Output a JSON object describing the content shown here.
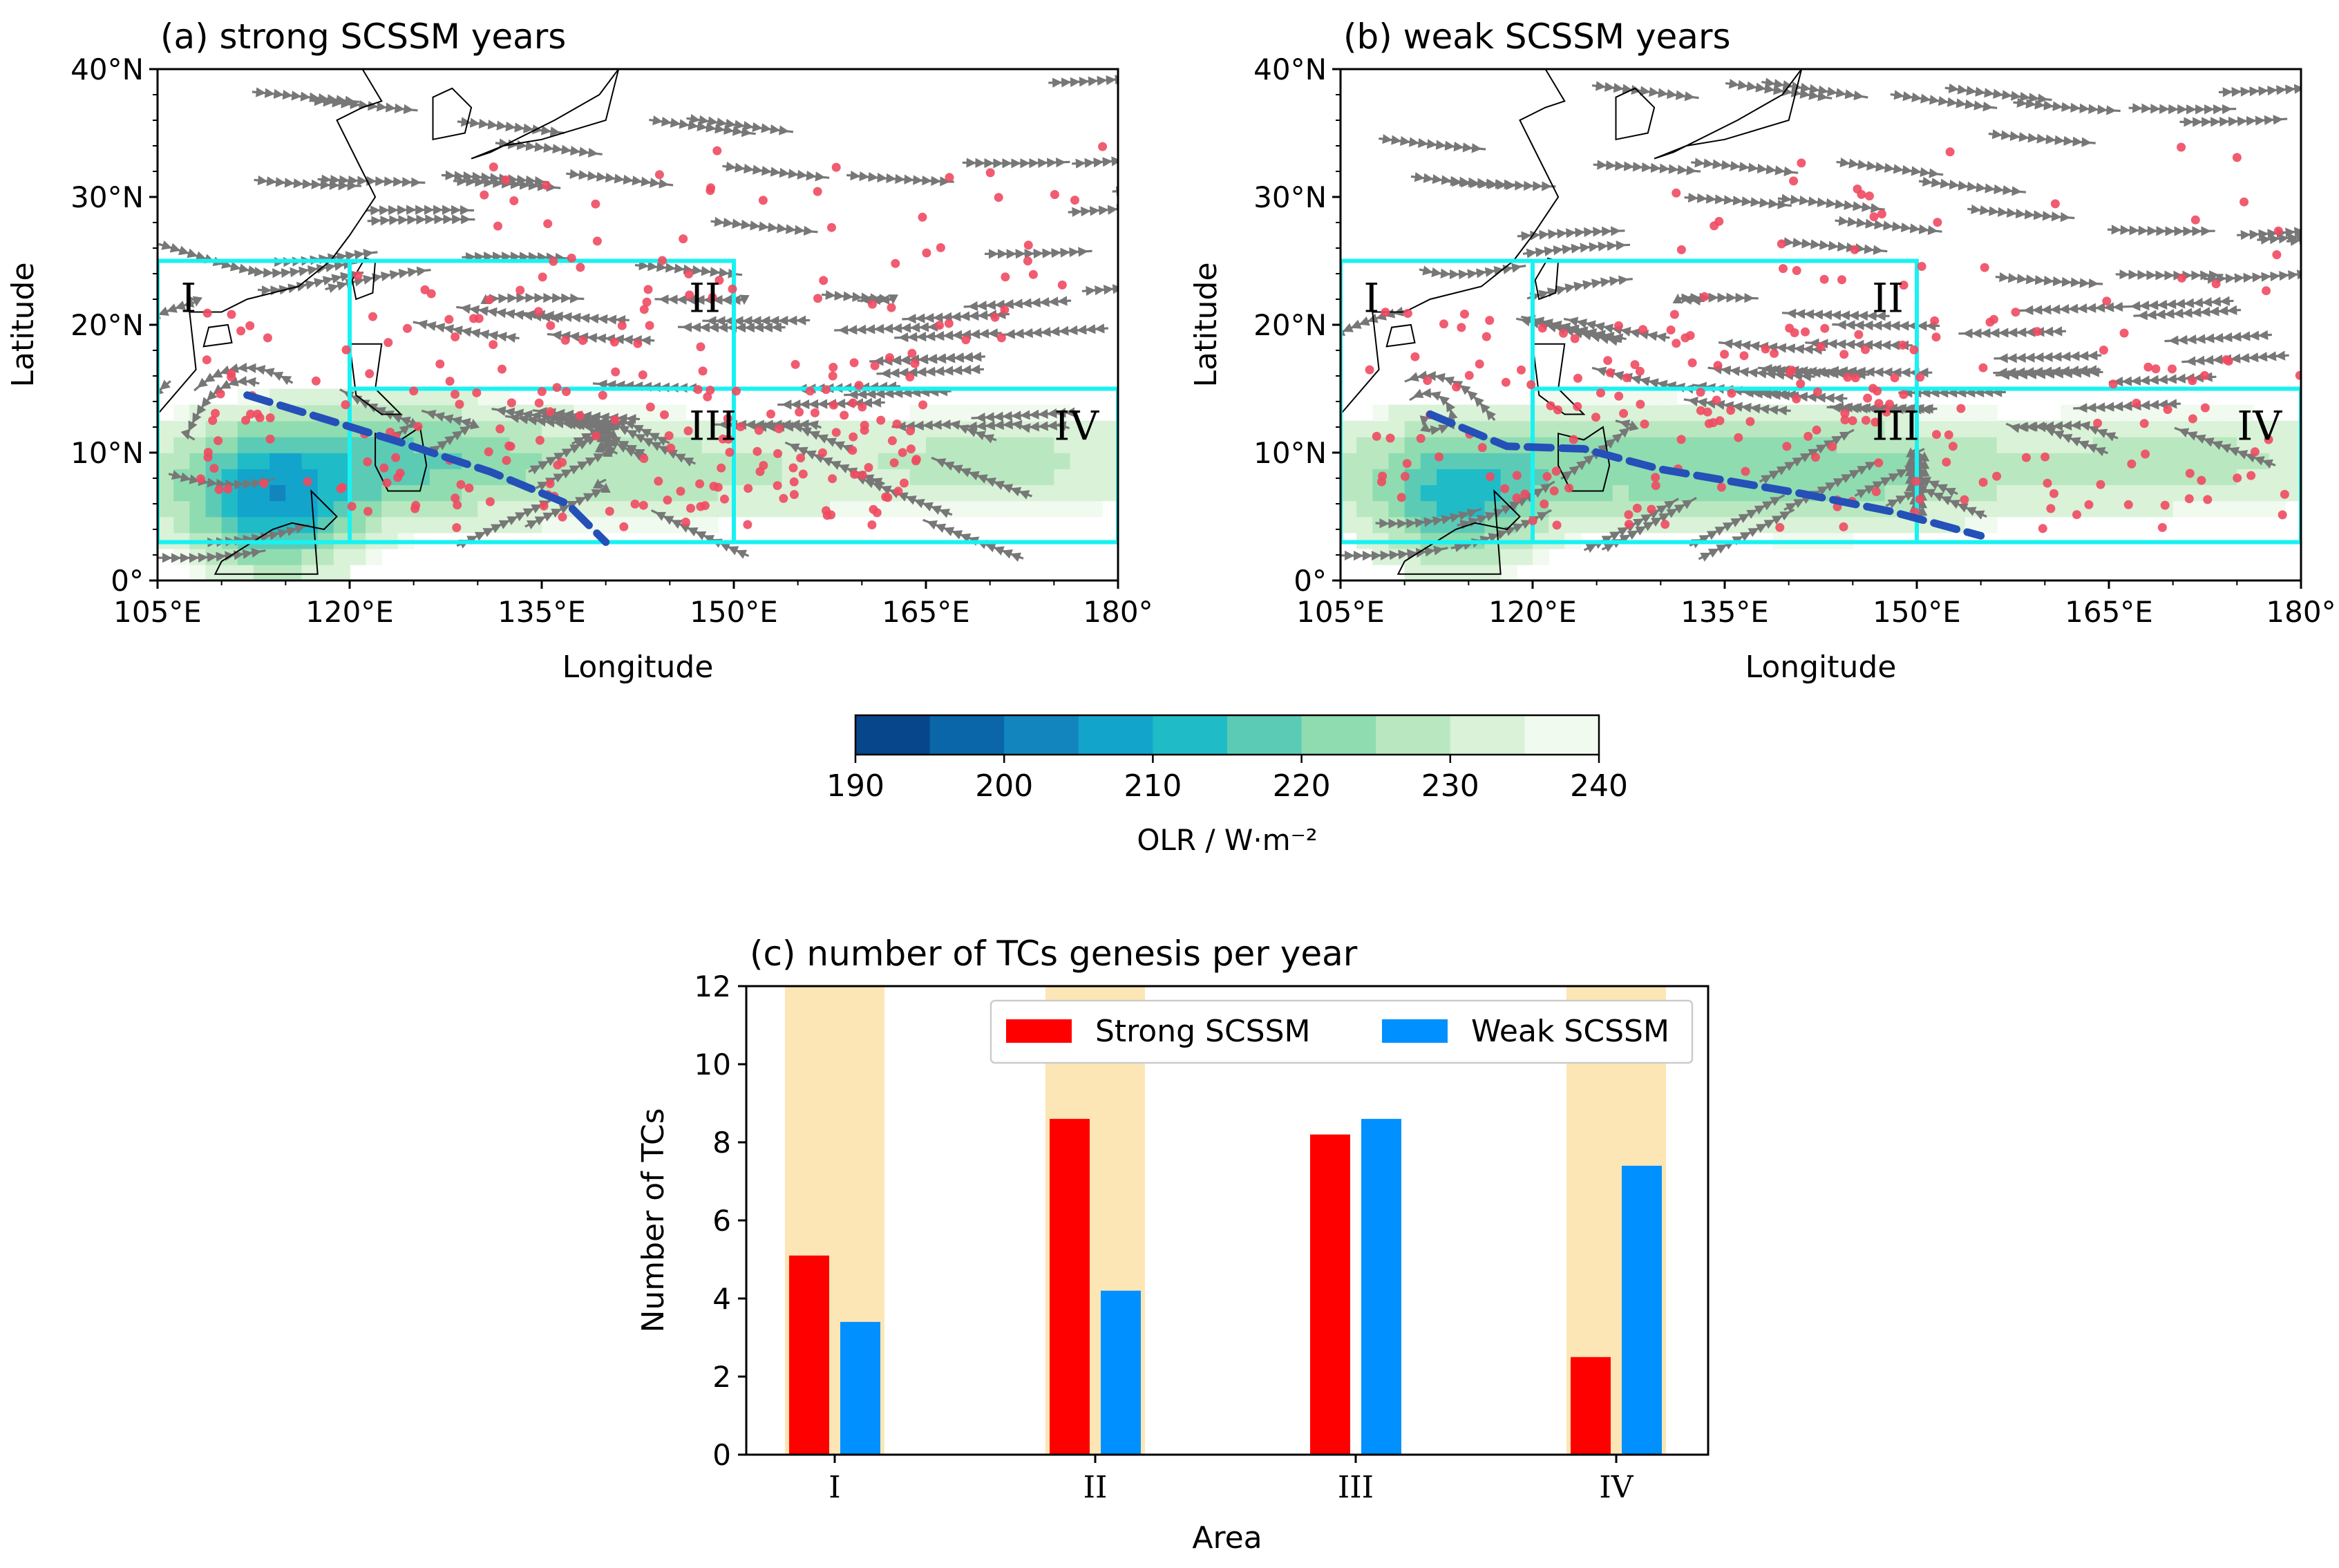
{
  "maps": [
    {
      "title": "(a) strong SCSSM years",
      "xlabel": "Longitude",
      "ylabel": "Latitude",
      "lon_range": [
        105,
        180
      ],
      "lat_range": [
        0,
        40
      ],
      "x_ticks": [
        "105°E",
        "120°E",
        "135°E",
        "150°E",
        "165°E",
        "180°"
      ],
      "y_ticks": [
        "0°",
        "10°N",
        "20°N",
        "30°N",
        "40°N"
      ],
      "regions": [
        "I",
        "II",
        "III",
        "IV"
      ],
      "trough_line": [
        [
          112,
          14.5
        ],
        [
          124,
          10.8
        ],
        [
          131,
          8.5
        ],
        [
          137,
          6
        ],
        [
          140,
          3
        ]
      ],
      "seed": 11
    },
    {
      "title": "(b) weak SCSSM years",
      "xlabel": "Longitude",
      "ylabel": "Latitude",
      "lon_range": [
        105,
        180
      ],
      "lat_range": [
        0,
        40
      ],
      "x_ticks": [
        "105°E",
        "120°E",
        "135°E",
        "150°E",
        "165°E",
        "180°"
      ],
      "y_ticks": [
        "0°",
        "10°N",
        "20°N",
        "30°N",
        "40°N"
      ],
      "regions": [
        "I",
        "II",
        "III",
        "IV"
      ],
      "trough_line": [
        [
          112,
          13
        ],
        [
          118,
          10.5
        ],
        [
          124,
          10.3
        ],
        [
          130,
          8.7
        ],
        [
          141,
          6.8
        ],
        [
          148,
          5.4
        ],
        [
          155,
          3.5
        ]
      ],
      "seed": 23
    }
  ],
  "colorbar": {
    "label": "OLR / W·m⁻²",
    "tick_labels": [
      "190",
      "200",
      "210",
      "220",
      "230",
      "240"
    ],
    "levels": [
      190,
      195,
      200,
      205,
      210,
      215,
      220,
      225,
      230,
      235,
      240
    ],
    "colors": [
      "#08468c",
      "#0a66a8",
      "#1285bf",
      "#13a4cc",
      "#1fbcc8",
      "#5ccbb6",
      "#8fdcb0",
      "#b9e8c0",
      "#d9f2d8",
      "#f1faef"
    ]
  },
  "chart_data": {
    "type": "bar",
    "title": "(c) number of TCs genesis per year",
    "xlabel": "Area",
    "ylabel": "Number of TCs",
    "categories": [
      "I",
      "II",
      "III",
      "IV"
    ],
    "series": [
      {
        "name": "Strong SCSSM",
        "values": [
          5.1,
          8.6,
          8.2,
          2.5
        ],
        "color": "#ff0000"
      },
      {
        "name": "Weak SCSSM",
        "values": [
          3.4,
          4.2,
          8.6,
          7.4
        ],
        "color": "#0090ff"
      }
    ],
    "highlighted_categories": [
      "I",
      "II",
      "IV"
    ],
    "highlight_color": "#fce6b5",
    "ylim": [
      0,
      12
    ],
    "y_ticks": [
      "0",
      "2",
      "4",
      "6",
      "8",
      "10",
      "12"
    ],
    "legend_position": "top-right"
  }
}
